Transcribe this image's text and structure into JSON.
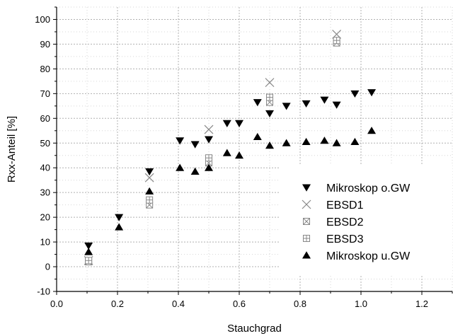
{
  "chart_data": {
    "type": "scatter",
    "xlabel": "Stauchgrad",
    "ylabel": "Rxx-Anteil [%]",
    "xlim": [
      0.0,
      1.3
    ],
    "ylim": [
      -10,
      105
    ],
    "xticks": [
      "0.0",
      "0.2",
      "0.4",
      "0.6",
      "0.8",
      "1.0",
      "1.2"
    ],
    "yticks": [
      "-10",
      "0",
      "10",
      "20",
      "30",
      "40",
      "50",
      "60",
      "70",
      "80",
      "90",
      "100"
    ],
    "grid": true,
    "legend_position": "bottom-right",
    "series": [
      {
        "name": "Mikroskop o.GW",
        "marker": "triangle-down",
        "color": "#000000",
        "points": [
          [
            0.105,
            8.5
          ],
          [
            0.205,
            20
          ],
          [
            0.305,
            38.5
          ],
          [
            0.405,
            51
          ],
          [
            0.455,
            49.5
          ],
          [
            0.5,
            51.5
          ],
          [
            0.56,
            58
          ],
          [
            0.6,
            58
          ],
          [
            0.66,
            66.5
          ],
          [
            0.7,
            62
          ],
          [
            0.755,
            65
          ],
          [
            0.82,
            66
          ],
          [
            0.88,
            67.5
          ],
          [
            0.92,
            65.5
          ],
          [
            0.98,
            70
          ],
          [
            1.035,
            70.5
          ]
        ]
      },
      {
        "name": "EBSD1",
        "marker": "x",
        "color": "#888888",
        "points": [
          [
            0.105,
            2.5
          ],
          [
            0.305,
            36
          ],
          [
            0.5,
            55.5
          ],
          [
            0.7,
            74.5
          ],
          [
            0.92,
            94
          ]
        ]
      },
      {
        "name": "EBSD2",
        "marker": "square-x",
        "color": "#888888",
        "points": [
          [
            0.105,
            2
          ],
          [
            0.305,
            25
          ],
          [
            0.5,
            42
          ],
          [
            0.7,
            66.5
          ],
          [
            0.92,
            90.5
          ]
        ]
      },
      {
        "name": "EBSD3",
        "marker": "square-plus",
        "color": "#888888",
        "points": [
          [
            0.105,
            2.5
          ],
          [
            0.305,
            27
          ],
          [
            0.5,
            44
          ],
          [
            0.7,
            68.5
          ],
          [
            0.92,
            91.5
          ]
        ]
      },
      {
        "name": "Mikroskop u.GW",
        "marker": "triangle-up",
        "color": "#000000",
        "points": [
          [
            0.105,
            6
          ],
          [
            0.205,
            16
          ],
          [
            0.305,
            30.5
          ],
          [
            0.405,
            40
          ],
          [
            0.455,
            38.5
          ],
          [
            0.5,
            40
          ],
          [
            0.56,
            46
          ],
          [
            0.6,
            45
          ],
          [
            0.66,
            52.5
          ],
          [
            0.7,
            49
          ],
          [
            0.755,
            50
          ],
          [
            0.82,
            50.5
          ],
          [
            0.88,
            51
          ],
          [
            0.92,
            50
          ],
          [
            0.98,
            50.5
          ],
          [
            1.035,
            55
          ]
        ]
      }
    ]
  }
}
